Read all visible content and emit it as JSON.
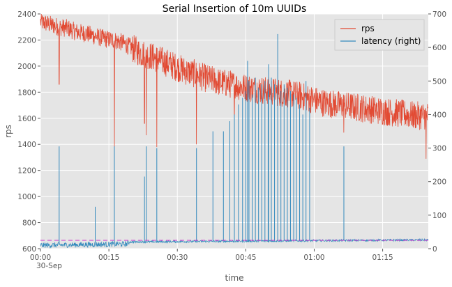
{
  "chart_data": {
    "type": "line",
    "title": "Serial Insertion of 10m UUIDs",
    "xlabel": "time",
    "ylabel": "rps",
    "x_unit": "minutes",
    "xlim": [
      0,
      85
    ],
    "ylim": [
      600,
      2400
    ],
    "y2lim": [
      0,
      700
    ],
    "x_ticks": [
      {
        "value": 0,
        "label": "00:00",
        "sublabel": "30-Sep"
      },
      {
        "value": 15,
        "label": "00:15"
      },
      {
        "value": 30,
        "label": "00:30"
      },
      {
        "value": 45,
        "label": "00:45"
      },
      {
        "value": 60,
        "label": "01:00"
      },
      {
        "value": 75,
        "label": "01:15"
      }
    ],
    "y_ticks": [
      600,
      800,
      1000,
      1200,
      1400,
      1600,
      1800,
      2000,
      2200,
      2400
    ],
    "y2_ticks": [
      0,
      100,
      200,
      300,
      400,
      500,
      600,
      700
    ],
    "grid": true,
    "legend_position": "top-right",
    "reference_line": {
      "axis": "right",
      "value": 25,
      "color": "#cc33cc",
      "style": "dashed"
    },
    "series": [
      {
        "name": "rps",
        "axis": "left",
        "color": "#e24a33",
        "x": [
          0,
          2,
          4,
          6,
          8,
          10,
          12,
          14,
          16,
          18,
          20,
          22,
          24,
          26,
          28,
          30,
          32,
          34,
          36,
          38,
          40,
          42,
          44,
          46,
          48,
          50,
          52,
          54,
          56,
          58,
          60,
          62,
          64,
          66,
          68,
          70,
          72,
          74,
          76,
          78,
          80,
          82,
          84
        ],
        "values": [
          2340,
          2320,
          2300,
          2290,
          2260,
          2250,
          2230,
          2210,
          2200,
          2180,
          2140,
          2100,
          2080,
          2050,
          2020,
          1990,
          1960,
          1940,
          1910,
          1890,
          1870,
          1860,
          1840,
          1830,
          1820,
          1810,
          1800,
          1790,
          1780,
          1760,
          1740,
          1720,
          1710,
          1700,
          1690,
          1680,
          1670,
          1660,
          1650,
          1640,
          1630,
          1620,
          1620
        ],
        "dips": [
          {
            "x": 4.1,
            "value": 1860
          },
          {
            "x": 16.2,
            "value": 1380
          },
          {
            "x": 22.8,
            "value": 1560
          },
          {
            "x": 23.2,
            "value": 1470
          },
          {
            "x": 25.5,
            "value": 1380
          },
          {
            "x": 34.2,
            "value": 1400
          },
          {
            "x": 42.5,
            "value": 1560
          },
          {
            "x": 66.5,
            "value": 1490
          },
          {
            "x": 84.5,
            "value": 1290
          }
        ]
      },
      {
        "name": "latency (right)",
        "axis": "right",
        "color": "#348abd",
        "baseline": [
          {
            "x": 0,
            "value": 10
          },
          {
            "x": 19,
            "value": 14
          },
          {
            "x": 19.5,
            "value": 20
          },
          {
            "x": 40,
            "value": 22
          },
          {
            "x": 60,
            "value": 24
          },
          {
            "x": 85,
            "value": 26
          }
        ],
        "spikes": [
          {
            "x": 4.1,
            "value": 305
          },
          {
            "x": 12,
            "value": 125
          },
          {
            "x": 16.2,
            "value": 305
          },
          {
            "x": 22.8,
            "value": 215
          },
          {
            "x": 23.2,
            "value": 305
          },
          {
            "x": 25.5,
            "value": 300
          },
          {
            "x": 34.2,
            "value": 300
          },
          {
            "x": 37.8,
            "value": 350
          },
          {
            "x": 40.1,
            "value": 350
          },
          {
            "x": 41.5,
            "value": 380
          },
          {
            "x": 42.5,
            "value": 400
          },
          {
            "x": 43.4,
            "value": 430
          },
          {
            "x": 44.3,
            "value": 450
          },
          {
            "x": 45.0,
            "value": 470
          },
          {
            "x": 45.7,
            "value": 500
          },
          {
            "x": 46.4,
            "value": 460
          },
          {
            "x": 47.1,
            "value": 510
          },
          {
            "x": 47.8,
            "value": 480
          },
          {
            "x": 48.5,
            "value": 490
          },
          {
            "x": 49.2,
            "value": 500
          },
          {
            "x": 49.9,
            "value": 470
          },
          {
            "x": 50.6,
            "value": 510
          },
          {
            "x": 51.3,
            "value": 490
          },
          {
            "x": 52.0,
            "value": 640
          },
          {
            "x": 52.7,
            "value": 470
          },
          {
            "x": 53.4,
            "value": 490
          },
          {
            "x": 54.1,
            "value": 480
          },
          {
            "x": 54.8,
            "value": 470
          },
          {
            "x": 55.5,
            "value": 460
          },
          {
            "x": 56.1,
            "value": 450
          },
          {
            "x": 56.8,
            "value": 430
          },
          {
            "x": 57.5,
            "value": 400
          },
          {
            "x": 58.2,
            "value": 500
          },
          {
            "x": 59.0,
            "value": 420
          },
          {
            "x": 66.5,
            "value": 305
          },
          {
            "x": 50.0,
            "value": 550
          },
          {
            "x": 45.4,
            "value": 560
          }
        ]
      }
    ]
  }
}
